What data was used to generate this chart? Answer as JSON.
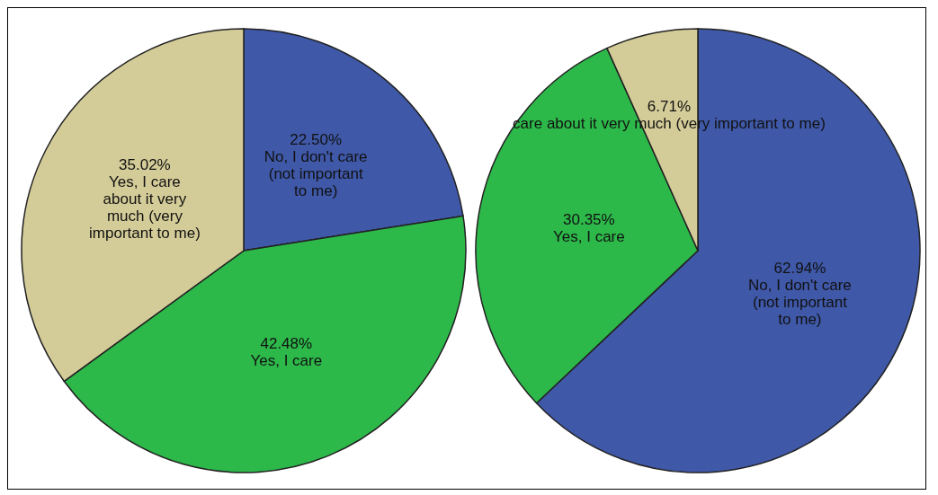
{
  "chart_data": [
    {
      "type": "pie",
      "categories": [
        "No, I don't care (not important to me)",
        "Yes, I care",
        "Yes, I care about it very much (very important to me)"
      ],
      "values": [
        22.5,
        42.48,
        35.02
      ],
      "colors": [
        "#3f58a8",
        "#2db84a",
        "#d4cc98"
      ],
      "value_labels": [
        "22.50%",
        "42.48%",
        "35.02%"
      ]
    },
    {
      "type": "pie",
      "categories": [
        "No, I don't care (not important to me)",
        "Yes, I care",
        "care about it very much (very important to me)"
      ],
      "values": [
        62.94,
        30.35,
        6.71
      ],
      "colors": [
        "#3f58a8",
        "#2db84a",
        "#d4cc98"
      ],
      "value_labels": [
        "62.94%",
        "30.35%",
        "6.71%"
      ]
    }
  ]
}
